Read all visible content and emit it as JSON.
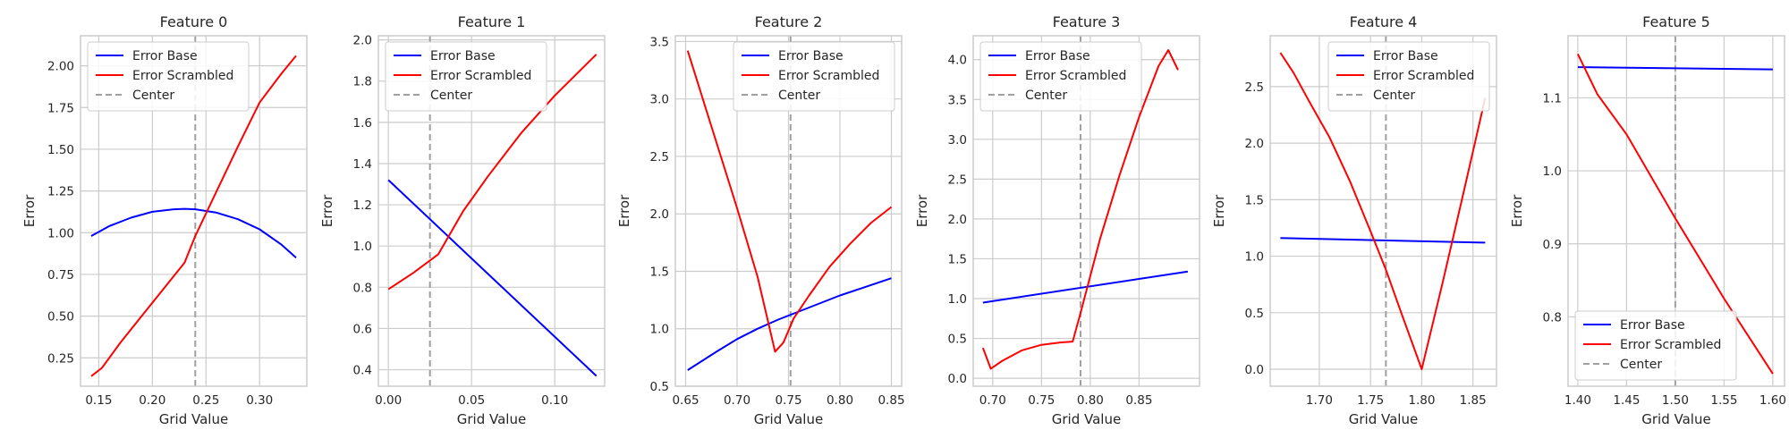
{
  "figure": {
    "colors": {
      "base": "#0000ff",
      "scrambled": "#ff0000",
      "center": "#a0a0a0",
      "grid": "#cccccc",
      "frame": "#cccccc"
    }
  },
  "chart_data": [
    {
      "type": "line",
      "title": "Feature 0",
      "xlabel": "Grid Value",
      "ylabel": "Error",
      "xlim": [
        0.133,
        0.344
      ],
      "ylim": [
        0.08,
        2.18
      ],
      "xticks": [
        0.15,
        0.2,
        0.25,
        0.3
      ],
      "xtick_labels": [
        "0.15",
        "0.20",
        "0.25",
        "0.30"
      ],
      "yticks": [
        0.25,
        0.5,
        0.75,
        1.0,
        1.25,
        1.5,
        1.75,
        2.0
      ],
      "ytick_labels": [
        "0.25",
        "0.50",
        "0.75",
        "1.00",
        "1.25",
        "1.50",
        "1.75",
        "2.00"
      ],
      "center": 0.24,
      "legend": "upper-left",
      "legend_entries": [
        "Error Base",
        "Error Scrambled",
        "Center"
      ],
      "grid": true,
      "series": [
        {
          "name": "Error Base",
          "color": "#0000ff",
          "x": [
            0.143,
            0.16,
            0.18,
            0.2,
            0.22,
            0.23,
            0.24,
            0.26,
            0.28,
            0.3,
            0.32,
            0.334
          ],
          "y": [
            0.98,
            1.04,
            1.09,
            1.125,
            1.14,
            1.143,
            1.14,
            1.12,
            1.08,
            1.02,
            0.93,
            0.85
          ]
        },
        {
          "name": "Error Scrambled",
          "color": "#ff0000",
          "x": [
            0.143,
            0.153,
            0.17,
            0.19,
            0.21,
            0.23,
            0.24,
            0.26,
            0.28,
            0.3,
            0.32,
            0.334
          ],
          "y": [
            0.14,
            0.19,
            0.34,
            0.5,
            0.66,
            0.82,
            0.98,
            1.25,
            1.52,
            1.78,
            1.95,
            2.06
          ]
        }
      ]
    },
    {
      "type": "line",
      "title": "Feature 1",
      "xlabel": "Grid Value",
      "ylabel": "Error",
      "xlim": [
        -0.006,
        0.13
      ],
      "ylim": [
        0.32,
        2.02
      ],
      "xticks": [
        0.0,
        0.05,
        0.1
      ],
      "xtick_labels": [
        "0.00",
        "0.05",
        "0.10"
      ],
      "yticks": [
        0.4,
        0.6,
        0.8,
        1.0,
        1.2,
        1.4,
        1.6,
        1.8,
        2.0
      ],
      "ytick_labels": [
        "0.4",
        "0.6",
        "0.8",
        "1.0",
        "1.2",
        "1.4",
        "1.6",
        "1.8",
        "2.0"
      ],
      "center": 0.025,
      "legend": "upper-left",
      "legend_entries": [
        "Error Base",
        "Error Scrambled",
        "Center"
      ],
      "grid": true,
      "series": [
        {
          "name": "Error Base",
          "color": "#0000ff",
          "x": [
            0.0,
            0.125
          ],
          "y": [
            1.32,
            0.37
          ]
        },
        {
          "name": "Error Scrambled",
          "color": "#ff0000",
          "x": [
            0.0,
            0.015,
            0.03,
            0.045,
            0.06,
            0.08,
            0.1,
            0.125
          ],
          "y": [
            0.79,
            0.87,
            0.96,
            1.17,
            1.34,
            1.55,
            1.73,
            1.93
          ]
        }
      ]
    },
    {
      "type": "line",
      "title": "Feature 2",
      "xlabel": "Grid Value",
      "ylabel": "Error",
      "xlim": [
        0.64,
        0.86
      ],
      "ylim": [
        0.5,
        3.55
      ],
      "xticks": [
        0.65,
        0.7,
        0.75,
        0.8,
        0.85
      ],
      "xtick_labels": [
        "0.65",
        "0.70",
        "0.75",
        "0.80",
        "0.85"
      ],
      "yticks": [
        0.5,
        1.0,
        1.5,
        2.0,
        2.5,
        3.0,
        3.5
      ],
      "ytick_labels": [
        "0.5",
        "1.0",
        "1.5",
        "2.0",
        "2.5",
        "3.0",
        "3.5"
      ],
      "center": 0.752,
      "legend": "upper-right",
      "legend_entries": [
        "Error Base",
        "Error Scrambled",
        "Center"
      ],
      "grid": true,
      "series": [
        {
          "name": "Error Base",
          "color": "#0000ff",
          "x": [
            0.652,
            0.68,
            0.7,
            0.72,
            0.74,
            0.76,
            0.78,
            0.8,
            0.82,
            0.85
          ],
          "y": [
            0.64,
            0.8,
            0.91,
            1.0,
            1.08,
            1.15,
            1.22,
            1.29,
            1.35,
            1.44
          ]
        },
        {
          "name": "Error Scrambled",
          "color": "#ff0000",
          "x": [
            0.652,
            0.68,
            0.7,
            0.72,
            0.737,
            0.745,
            0.755,
            0.77,
            0.79,
            0.81,
            0.83,
            0.85
          ],
          "y": [
            3.42,
            2.62,
            2.05,
            1.45,
            0.8,
            0.88,
            1.09,
            1.29,
            1.54,
            1.74,
            1.92,
            2.06
          ]
        }
      ]
    },
    {
      "type": "line",
      "title": "Feature 3",
      "xlabel": "Grid Value",
      "ylabel": "Error",
      "xlim": [
        0.68,
        0.912
      ],
      "ylim": [
        -0.1,
        4.3
      ],
      "xticks": [
        0.7,
        0.75,
        0.8,
        0.85
      ],
      "xtick_labels": [
        "0.70",
        "0.75",
        "0.80",
        "0.85"
      ],
      "yticks": [
        0.0,
        0.5,
        1.0,
        1.5,
        2.0,
        2.5,
        3.0,
        3.5,
        4.0
      ],
      "ytick_labels": [
        "0.0",
        "0.5",
        "1.0",
        "1.5",
        "2.0",
        "2.5",
        "3.0",
        "3.5",
        "4.0"
      ],
      "center": 0.79,
      "legend": "upper-left",
      "legend_entries": [
        "Error Base",
        "Error Scrambled",
        "Center"
      ],
      "grid": true,
      "series": [
        {
          "name": "Error Base",
          "color": "#0000ff",
          "x": [
            0.69,
            0.9
          ],
          "y": [
            0.95,
            1.34
          ]
        },
        {
          "name": "Error Scrambled",
          "color": "#ff0000",
          "x": [
            0.69,
            0.698,
            0.71,
            0.73,
            0.75,
            0.77,
            0.782,
            0.79,
            0.81,
            0.83,
            0.85,
            0.87,
            0.88,
            0.89
          ],
          "y": [
            0.38,
            0.12,
            0.22,
            0.35,
            0.42,
            0.45,
            0.46,
            0.82,
            1.75,
            2.55,
            3.28,
            3.92,
            4.12,
            3.87
          ]
        }
      ]
    },
    {
      "type": "line",
      "title": "Feature 4",
      "xlabel": "Grid Value",
      "ylabel": "Error",
      "xlim": [
        1.652,
        1.873
      ],
      "ylim": [
        -0.15,
        2.95
      ],
      "xticks": [
        1.7,
        1.75,
        1.8,
        1.85
      ],
      "xtick_labels": [
        "1.70",
        "1.75",
        "1.80",
        "1.85"
      ],
      "yticks": [
        0.0,
        0.5,
        1.0,
        1.5,
        2.0,
        2.5
      ],
      "ytick_labels": [
        "0.0",
        "0.5",
        "1.0",
        "1.5",
        "2.0",
        "2.5"
      ],
      "center": 1.765,
      "legend": "upper-right",
      "legend_entries": [
        "Error Base",
        "Error Scrambled",
        "Center"
      ],
      "grid": true,
      "series": [
        {
          "name": "Error Base",
          "color": "#0000ff",
          "x": [
            1.662,
            1.862
          ],
          "y": [
            1.16,
            1.12
          ]
        },
        {
          "name": "Error Scrambled",
          "color": "#ff0000",
          "x": [
            1.662,
            1.675,
            1.69,
            1.71,
            1.73,
            1.75,
            1.765,
            1.78,
            1.8,
            1.82,
            1.84,
            1.862
          ],
          "y": [
            2.8,
            2.62,
            2.37,
            2.05,
            1.66,
            1.22,
            0.88,
            0.5,
            0.0,
            0.75,
            1.53,
            2.4
          ]
        }
      ]
    },
    {
      "type": "line",
      "title": "Feature 5",
      "xlabel": "Grid Value",
      "ylabel": "Error",
      "xlim": [
        1.39,
        1.612
      ],
      "ylim": [
        0.705,
        1.185
      ],
      "xticks": [
        1.4,
        1.45,
        1.5,
        1.55,
        1.6
      ],
      "xtick_labels": [
        "1.40",
        "1.45",
        "1.50",
        "1.55",
        "1.60"
      ],
      "yticks": [
        0.8,
        0.9,
        1.0,
        1.1
      ],
      "ytick_labels": [
        "0.8",
        "0.9",
        "1.0",
        "1.1"
      ],
      "center": 1.5,
      "legend": "lower-left",
      "legend_entries": [
        "Error Base",
        "Error Scrambled",
        "Center"
      ],
      "grid": true,
      "series": [
        {
          "name": "Error Base",
          "color": "#0000ff",
          "x": [
            1.4,
            1.6
          ],
          "y": [
            1.142,
            1.139
          ]
        },
        {
          "name": "Error Scrambled",
          "color": "#ff0000",
          "x": [
            1.4,
            1.42,
            1.45,
            1.5,
            1.55,
            1.6
          ],
          "y": [
            1.16,
            1.105,
            1.05,
            0.935,
            0.825,
            0.722
          ]
        }
      ]
    }
  ]
}
